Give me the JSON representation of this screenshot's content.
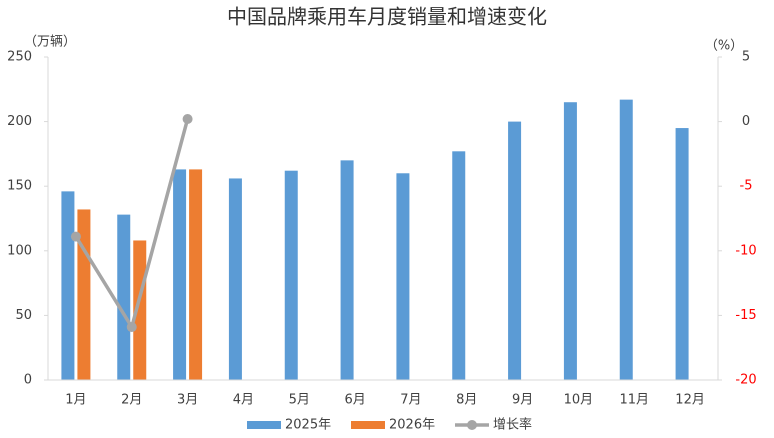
{
  "chart_data": {
    "type": "bar",
    "title": "中国品牌乘用车月度销量和增速变化",
    "y_label": "（万辆）",
    "y2_label": "（%）",
    "categories": [
      "1月",
      "2月",
      "3月",
      "4月",
      "5月",
      "6月",
      "7月",
      "8月",
      "9月",
      "10月",
      "11月",
      "12月"
    ],
    "series": [
      {
        "name": "2025年",
        "type": "bar",
        "color": "#5b9bd5",
        "values": [
          146,
          128,
          163,
          156,
          162,
          170,
          160,
          177,
          200,
          215,
          217,
          195
        ]
      },
      {
        "name": "2026年",
        "type": "bar",
        "color": "#ed7d31",
        "values": [
          132,
          108,
          163,
          null,
          null,
          null,
          null,
          null,
          null,
          null,
          null,
          null
        ]
      },
      {
        "name": "增长率",
        "type": "line",
        "axis": "y2",
        "color": "#a5a5a5",
        "values": [
          -8.9,
          -15.9,
          0.2,
          null,
          null,
          null,
          null,
          null,
          null,
          null,
          null,
          null
        ]
      }
    ],
    "ylim": [
      0,
      250
    ],
    "yticks": [
      0,
      50,
      100,
      150,
      200,
      250
    ],
    "y2lim": [
      -20,
      5
    ],
    "y2ticks": [
      -20,
      -15,
      -10,
      -5,
      0,
      5
    ],
    "y2_negative_tick_color": "#ff0000",
    "grid": false,
    "legend": "bottom"
  }
}
